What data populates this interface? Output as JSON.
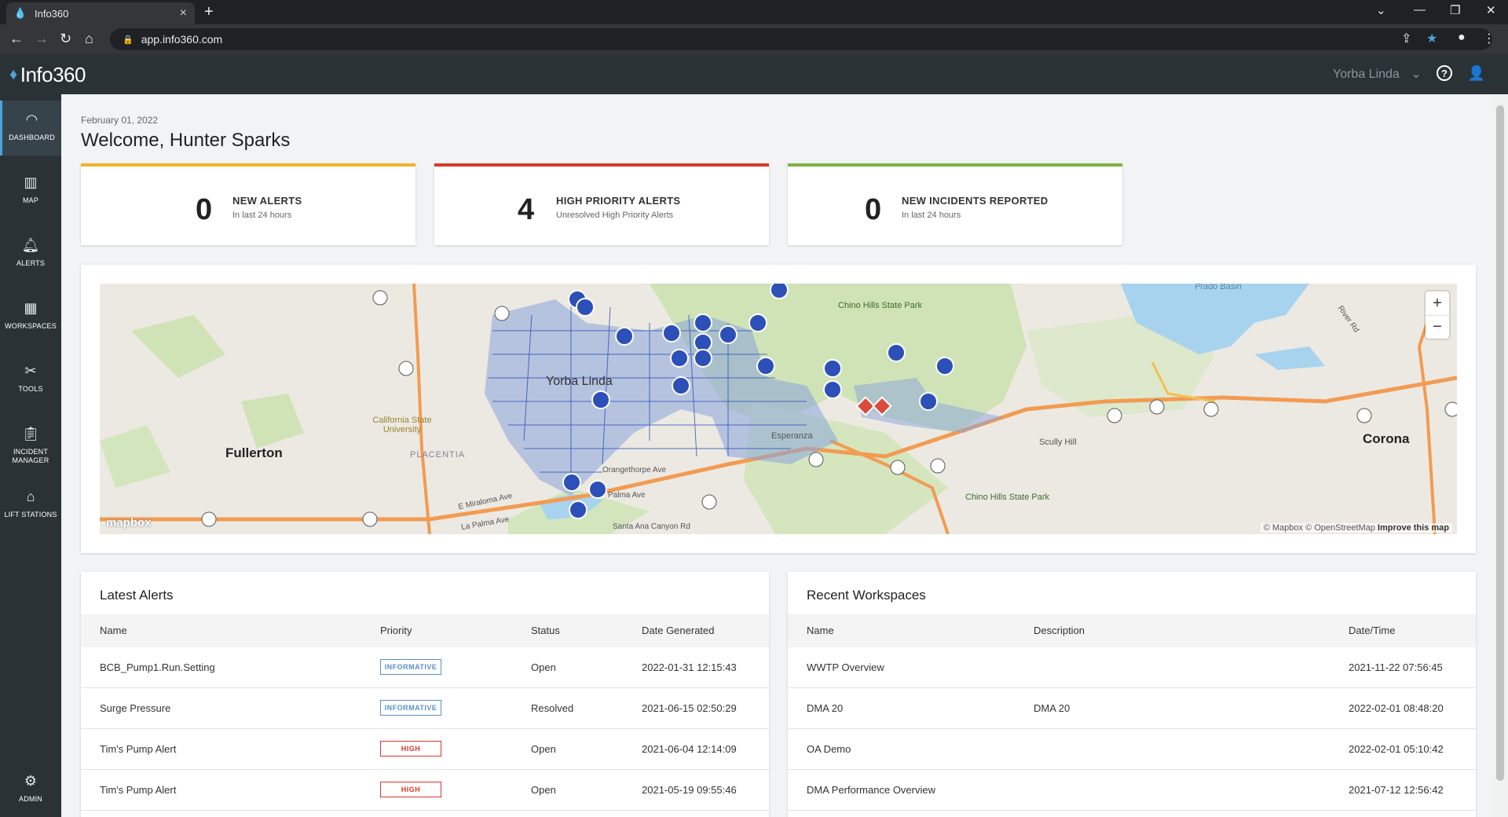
{
  "browser": {
    "tab_title": "Info360",
    "tab_close": "×",
    "new_tab": "+",
    "url": "app.info360.com"
  },
  "app": {
    "logo_text": "Info360",
    "site": "Yorba Linda"
  },
  "sidebar": {
    "items": [
      {
        "label": "DASHBOARD",
        "icon": "gauge-icon"
      },
      {
        "label": "MAP",
        "icon": "map-icon"
      },
      {
        "label": "ALERTS",
        "icon": "bell-icon"
      },
      {
        "label": "WORKSPACES",
        "icon": "workspaces-icon"
      },
      {
        "label": "TOOLS",
        "icon": "tools-icon"
      },
      {
        "label": "INCIDENT MANAGER",
        "icon": "clipboard-icon"
      },
      {
        "label": "LIFT STATIONS",
        "icon": "lift-station-icon"
      }
    ],
    "admin_label": "ADMIN"
  },
  "dashboard": {
    "date": "February 01, 2022",
    "welcome": "Welcome, Hunter Sparks",
    "kpis": [
      {
        "value": "0",
        "title": "NEW ALERTS",
        "subtitle": "In last 24 hours",
        "color": "#f0b429"
      },
      {
        "value": "4",
        "title": "HIGH PRIORITY ALERTS",
        "subtitle": "Unresolved High Priority Alerts",
        "color": "#d8382a"
      },
      {
        "value": "0",
        "title": "NEW INCIDENTS REPORTED",
        "subtitle": "In last 24 hours",
        "color": "#7cb342"
      }
    ]
  },
  "map": {
    "labels": {
      "yorba_linda": "Yorba Linda",
      "fullerton": "Fullerton",
      "corona": "Corona",
      "placentia": "PLACENTIA",
      "csu": "California State University",
      "chino_hills_1": "Chino Hills State Park",
      "chino_hills_2": "Chino Hills State Park",
      "scully_hill": "Scully Hill",
      "esperanza": "Esperanza",
      "prado_basin": "Prado Basin",
      "palma_ave": "Palma Ave",
      "miraloma": "E Miraloma Ave",
      "la_palma": "La Palma Ave",
      "santa_ana": "Santa Ana Canyon Rd",
      "orangethorpe": "Orangethorpe Ave",
      "river_rd": "River Rd"
    },
    "zoom_in": "+",
    "zoom_out": "−",
    "mapbox_logo": "mapbox",
    "attribution": "© Mapbox © OpenStreetMap",
    "improve": "Improve this map"
  },
  "alerts": {
    "title": "Latest Alerts",
    "columns": [
      "Name",
      "Priority",
      "Status",
      "Date Generated"
    ],
    "rows": [
      {
        "name": "BCB_Pump1.Run.Setting",
        "priority": "INFORMATIVE",
        "status": "Open",
        "date": "2022-01-31 12:15:43"
      },
      {
        "name": "Surge Pressure",
        "priority": "INFORMATIVE",
        "status": "Resolved",
        "date": "2021-06-15 02:50:29"
      },
      {
        "name": "Tim's Pump Alert",
        "priority": "HIGH",
        "status": "Open",
        "date": "2021-06-04 12:14:09"
      },
      {
        "name": "Tim's Pump Alert",
        "priority": "HIGH",
        "status": "Open",
        "date": "2021-05-19 09:55:46"
      }
    ]
  },
  "workspaces": {
    "title": "Recent Workspaces",
    "columns": [
      "Name",
      "Description",
      "Date/Time"
    ],
    "rows": [
      {
        "name": "WWTP Overview",
        "description": "",
        "date": "2021-11-22 07:56:45"
      },
      {
        "name": "DMA 20",
        "description": "DMA 20",
        "date": "2022-02-01 08:48:20"
      },
      {
        "name": "OA Demo",
        "description": "",
        "date": "2022-02-01 05:10:42"
      },
      {
        "name": "DMA Performance Overview",
        "description": "",
        "date": "2021-07-12 12:56:42"
      }
    ]
  }
}
